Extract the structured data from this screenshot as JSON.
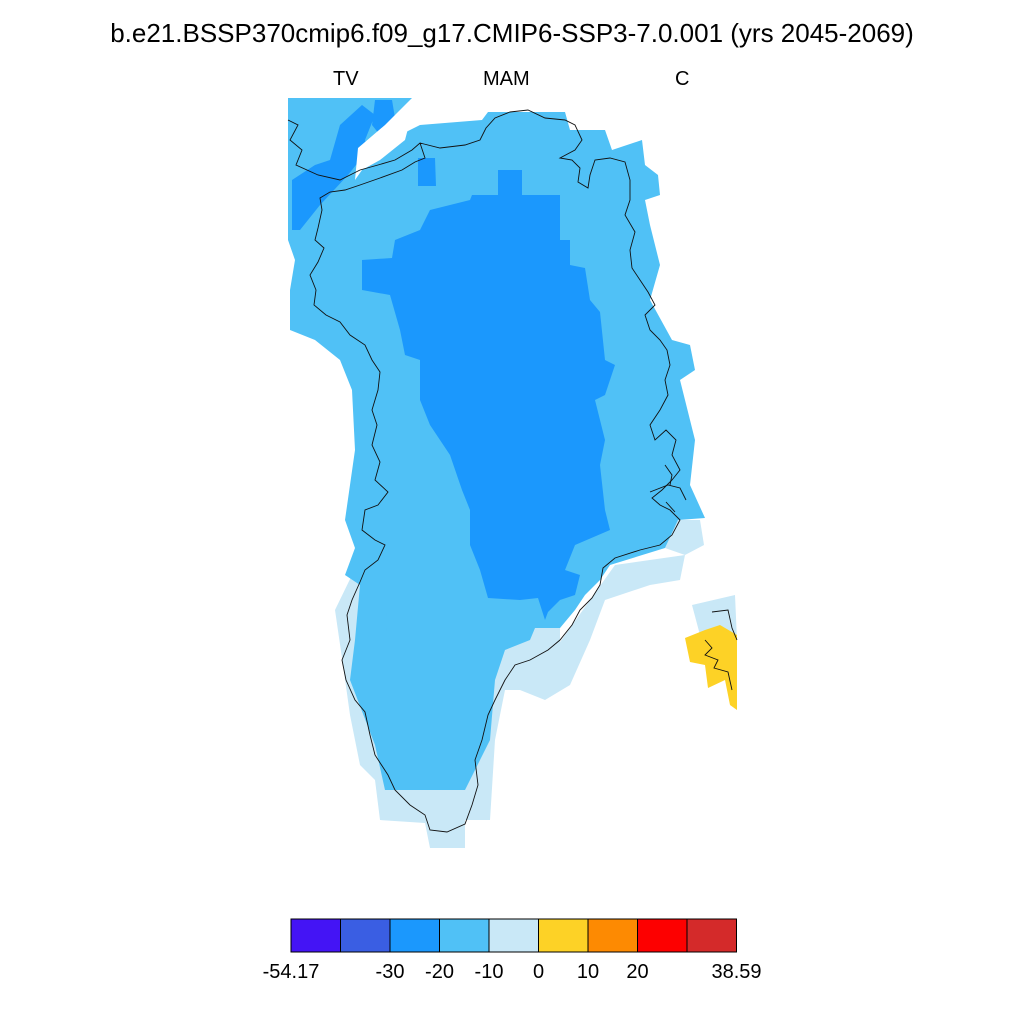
{
  "plot": {
    "title": "b.e21.BSSP370cmip6.f09_g17.CMIP6-SSP3-7.0.001 (yrs 2045-2069)",
    "left_label": "TV",
    "center_label": "MAM",
    "right_label": "C"
  },
  "colorbar": {
    "colors": [
      "#4414f5",
      "#3a5ee3",
      "#1b98fd",
      "#50c1f6",
      "#c9e8f7",
      "#fdd226",
      "#fd8a02",
      "#fd0000",
      "#d42a2a"
    ],
    "labels": [
      "-54.17",
      "-30",
      "-20",
      "-10",
      "0",
      "10",
      "20",
      "38.59"
    ]
  }
}
